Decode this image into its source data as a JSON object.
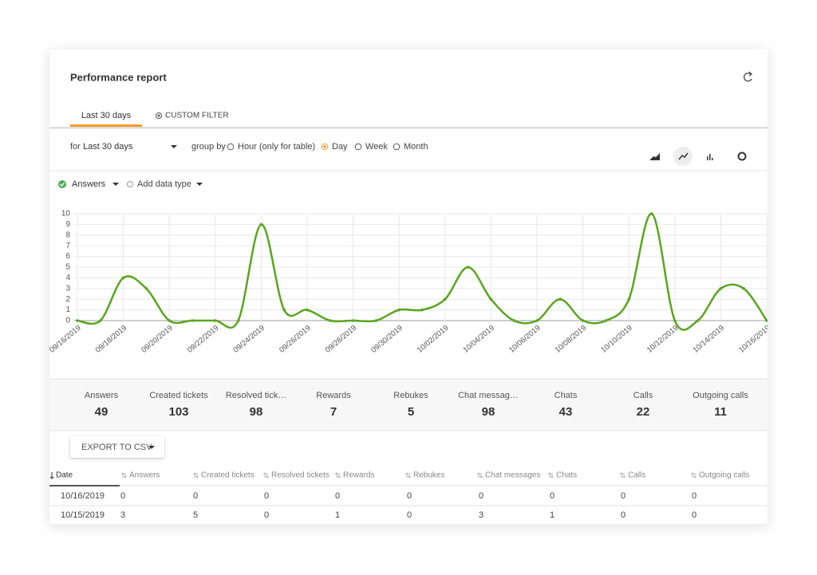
{
  "header": {
    "title": "Performance report"
  },
  "tabs": [
    "Last 30 days",
    "CUSTOM FILTER"
  ],
  "filter": {
    "for_label": "for",
    "period": "Last 30 days",
    "group_by": "group by",
    "options": [
      "Hour (only for table)",
      "Day",
      "Week",
      "Month"
    ],
    "selected": 1
  },
  "add_data_type": "Add data type",
  "chart_data": {
    "type": "line",
    "categories": [
      "09/16/2019",
      null,
      "09/18/2019",
      null,
      "09/20/2019",
      null,
      "09/22/2019",
      null,
      "09/24/2019",
      null,
      "09/26/2019",
      null,
      "09/28/2019",
      null,
      "09/30/2019",
      null,
      "10/02/2019",
      null,
      "10/04/2019",
      null,
      "10/06/2019",
      null,
      "10/08/2019",
      null,
      "10/10/2019",
      null,
      "10/12/2019",
      null,
      "10/14/2019",
      null,
      "10/16/2019"
    ],
    "series": [
      {
        "name": "Answers",
        "color": "#5aa51e",
        "values": [
          0,
          0,
          4,
          3,
          0,
          0,
          0,
          0,
          9,
          1,
          1,
          0,
          0,
          0,
          1,
          1,
          2,
          5,
          2,
          0,
          0,
          2,
          0,
          0,
          2,
          10,
          0,
          0,
          3,
          3,
          0
        ]
      }
    ],
    "ylim": [
      0,
      10
    ],
    "yticks": [
      0,
      1,
      2,
      3,
      4,
      5,
      6,
      7,
      8,
      9,
      10
    ],
    "grid": true
  },
  "summary": [
    {
      "label": "Answers",
      "value": 49
    },
    {
      "label": "Created tickets",
      "value": 103
    },
    {
      "label": "Resolved tick…",
      "value": 98
    },
    {
      "label": "Rewards",
      "value": 7
    },
    {
      "label": "Rebukes",
      "value": 5
    },
    {
      "label": "Chat messag…",
      "value": 98
    },
    {
      "label": "Chats",
      "value": 43
    },
    {
      "label": "Calls",
      "value": 22
    },
    {
      "label": "Outgoing calls",
      "value": 11
    }
  ],
  "export": "EXPORT TO CSV",
  "table": {
    "columns": [
      "Date",
      "Answers",
      "Created tickets",
      "Resolved tickets",
      "Rewards",
      "Rebukes",
      "Chat messages",
      "Chats",
      "Calls",
      "Outgoing calls"
    ],
    "rows": [
      [
        "10/16/2019",
        0,
        0,
        0,
        0,
        0,
        0,
        0,
        0,
        0
      ],
      [
        "10/15/2019",
        3,
        5,
        0,
        1,
        0,
        3,
        1,
        0,
        0
      ]
    ]
  }
}
